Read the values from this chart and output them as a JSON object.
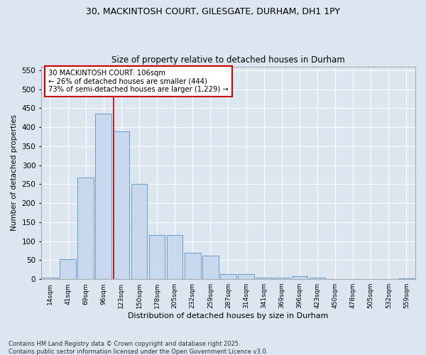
{
  "title1": "30, MACKINTOSH COURT, GILESGATE, DURHAM, DH1 1PY",
  "title2": "Size of property relative to detached houses in Durham",
  "xlabel": "Distribution of detached houses by size in Durham",
  "ylabel": "Number of detached properties",
  "categories": [
    "14sqm",
    "41sqm",
    "69sqm",
    "96sqm",
    "123sqm",
    "150sqm",
    "178sqm",
    "205sqm",
    "232sqm",
    "259sqm",
    "287sqm",
    "314sqm",
    "341sqm",
    "369sqm",
    "396sqm",
    "423sqm",
    "450sqm",
    "478sqm",
    "505sqm",
    "532sqm",
    "559sqm"
  ],
  "values": [
    4,
    52,
    268,
    435,
    390,
    250,
    116,
    116,
    70,
    62,
    13,
    13,
    5,
    5,
    8,
    4,
    1,
    0,
    0,
    0,
    2
  ],
  "bar_color": "#c8d9ee",
  "bar_edge_color": "#6a9cc8",
  "vline_pos": 3.58,
  "annotation_line1": "30 MACKINTOSH COURT: 106sqm",
  "annotation_line2": "← 26% of detached houses are smaller (444)",
  "annotation_line3": "73% of semi-detached houses are larger (1,229) →",
  "annotation_box_facecolor": "#ffffff",
  "annotation_box_edgecolor": "#cc0000",
  "vline_color": "#cc0000",
  "ylim": [
    0,
    560
  ],
  "yticks": [
    0,
    50,
    100,
    150,
    200,
    250,
    300,
    350,
    400,
    450,
    500,
    550
  ],
  "bg_color": "#dce6f0",
  "plot_bg_color": "#dce6f0",
  "grid_color": "#ffffff",
  "fig_bg_color": "#dce6f0",
  "footer1": "Contains HM Land Registry data © Crown copyright and database right 2025.",
  "footer2": "Contains public sector information licensed under the Open Government Licence v3.0."
}
